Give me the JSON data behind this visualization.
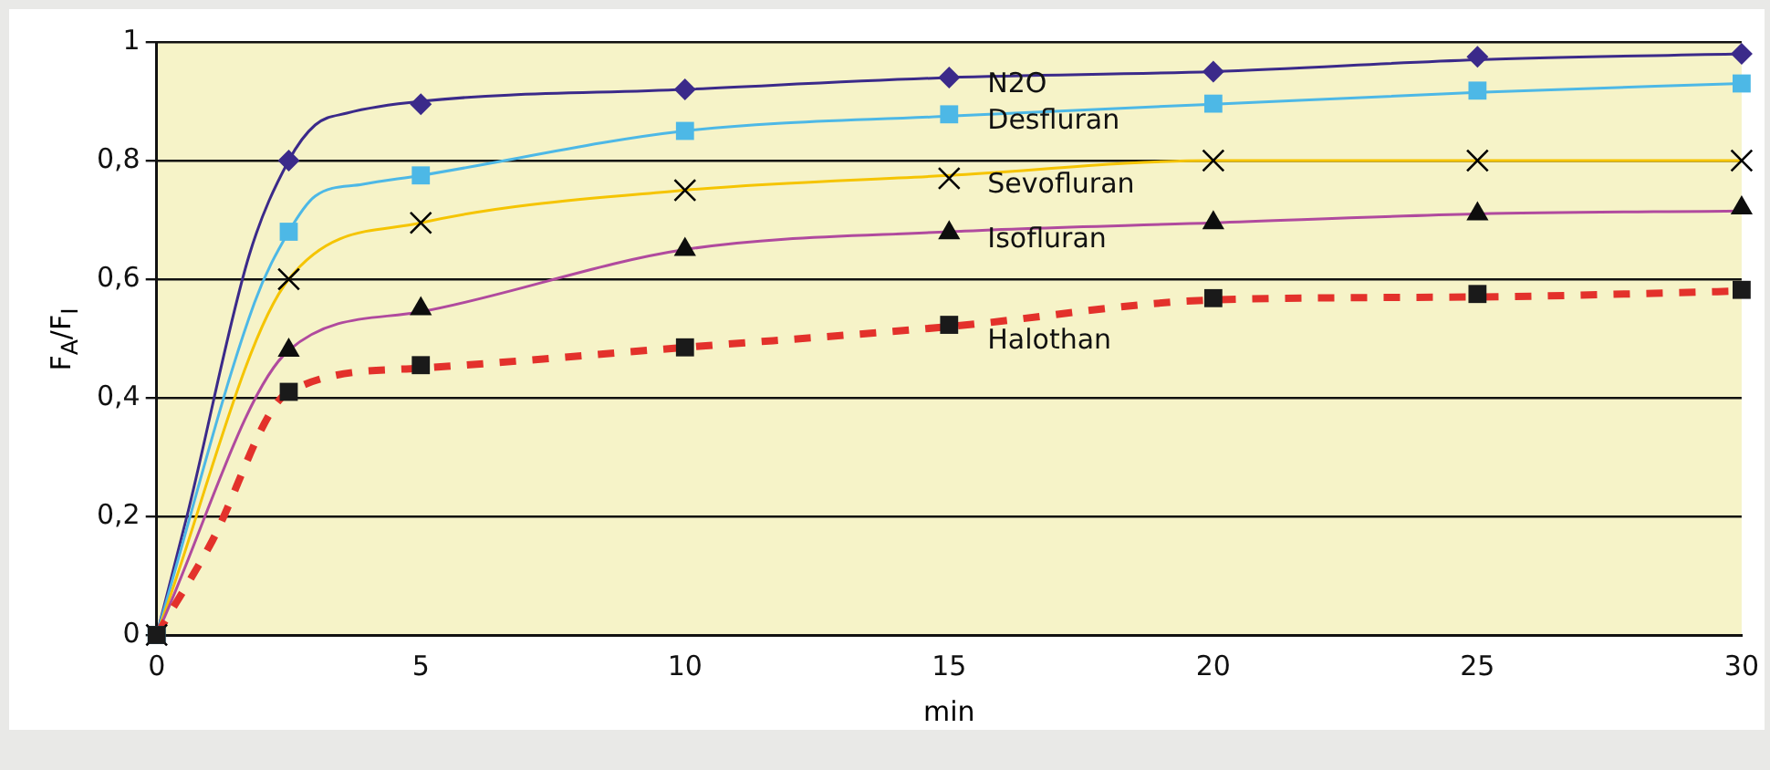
{
  "chart_data": {
    "type": "line",
    "xlabel": "min",
    "ylabel": "F$_{A}$/F$_{I}$",
    "xlim": [
      0,
      30
    ],
    "xticks": [
      0,
      5,
      10,
      15,
      20,
      25,
      30
    ],
    "ylim": [
      0,
      1
    ],
    "yticks": [
      0,
      {
        "value": 0.2,
        "label": "0,2"
      },
      {
        "value": 0.4,
        "label": "0,4"
      },
      {
        "value": 0.6,
        "label": "0,6"
      },
      {
        "value": 0.8,
        "label": "0,8"
      },
      1
    ],
    "grid": "y",
    "legend": "right",
    "series": [
      {
        "color": "#3b2a8a",
        "line_style": "solid",
        "x": [
          0,
          0.6,
          1.75,
          2.5,
          3,
          3.6,
          5,
          10,
          15,
          20,
          25,
          30
        ],
        "values": [
          0,
          0.21,
          0.64,
          0.8,
          0.86,
          0.88,
          0.9,
          0.92,
          0.94,
          0.95,
          0.97,
          0.98
        ]
      },
      {
        "color": "#4db8e6",
        "line_style": "solid",
        "x": [
          0,
          1.85,
          2.5,
          3,
          3.9,
          5,
          10,
          15,
          20,
          25,
          30
        ],
        "values": [
          0,
          0.56,
          0.68,
          0.74,
          0.76,
          0.775,
          0.85,
          0.875,
          0.895,
          0.915,
          0.93
        ]
      },
      {
        "color": "#f5c400",
        "line_style": "solid",
        "x": [
          0,
          2.5,
          5,
          10,
          15,
          20,
          25,
          30
        ],
        "values": [
          0,
          0.6,
          0.695,
          0.75,
          0.775,
          0.8,
          0.8,
          0.8
        ]
      },
      {
        "color": "#b04a9e",
        "line_style": "solid",
        "x": [
          0,
          2.5,
          5,
          10,
          15,
          20,
          25,
          30
        ],
        "values": [
          0,
          0.48,
          0.545,
          0.65,
          0.68,
          0.695,
          0.71,
          0.715
        ]
      },
      {
        "color": "#e3312b",
        "line_style": "dashed",
        "x": [
          0,
          1,
          2.5,
          5,
          10,
          15,
          20,
          25,
          30
        ],
        "values": [
          0,
          0.15,
          0.41,
          0.45,
          0.485,
          0.52,
          0.565,
          0.57,
          0.58
        ]
      },
      {
        "type": "scatter",
        "name": "N2O",
        "color": "#3b2a8a",
        "marker": "diamond",
        "x": [
          2.5,
          5,
          10,
          15,
          20,
          25,
          30
        ],
        "values": [
          0.8,
          0.895,
          0.92,
          0.94,
          0.95,
          0.975,
          0.98
        ]
      },
      {
        "type": "scatter",
        "name": "Desfluran",
        "color": "#4db8e6",
        "marker": "square",
        "x": [
          0,
          2.5,
          5,
          10,
          15,
          20,
          25,
          30
        ],
        "values": [
          0,
          0.68,
          0.775,
          0.85,
          0.878,
          0.896,
          0.918,
          0.93
        ]
      },
      {
        "type": "scatter",
        "name": "Sevofluran",
        "color": "#000000",
        "marker": "cross",
        "x": [
          0,
          2.5,
          5,
          10,
          15,
          20,
          25,
          30
        ],
        "values": [
          0,
          0.6,
          0.695,
          0.75,
          0.77,
          0.8,
          0.8,
          0.8
        ]
      },
      {
        "type": "scatter",
        "name": "Isofluran",
        "color": "#0d0d0d",
        "marker": "triangle",
        "x": [
          2.5,
          5,
          10,
          15,
          20,
          25,
          30
        ],
        "values": [
          0.48,
          0.55,
          0.65,
          0.678,
          0.695,
          0.71,
          0.72
        ]
      },
      {
        "type": "scatter",
        "name": "Halothan",
        "color": "#1a1a1a",
        "marker": "square",
        "x": [
          0,
          2.5,
          5,
          10,
          15,
          20,
          25,
          30
        ],
        "values": [
          0,
          0.41,
          0.455,
          0.485,
          0.523,
          0.568,
          0.575,
          0.582
        ]
      }
    ]
  }
}
